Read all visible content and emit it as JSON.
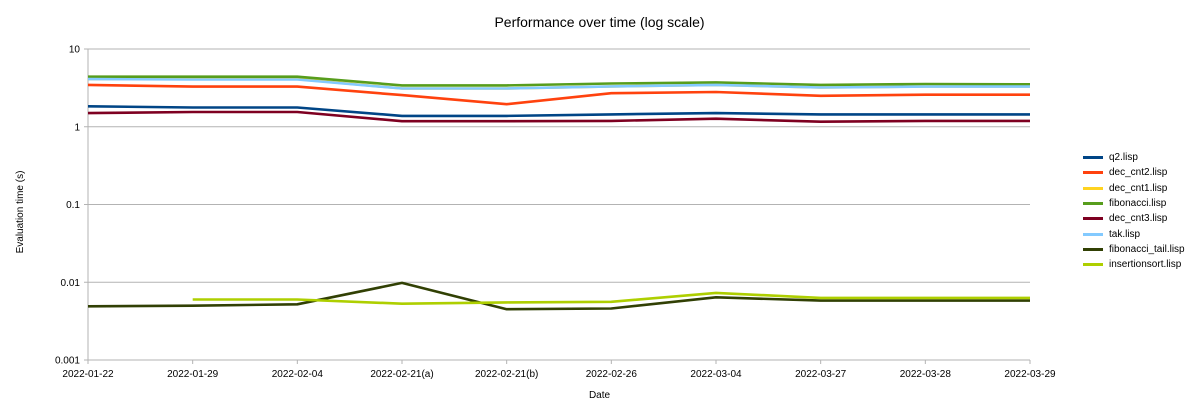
{
  "chart_data": {
    "type": "line",
    "title": "Performance over time  (log scale)",
    "xlabel": "Date",
    "ylabel": "Evaluation time (s)",
    "y_scale": "log",
    "ylim": [
      0.001,
      10
    ],
    "y_ticks": [
      "0.001",
      "0.01",
      "0.1",
      "1",
      "10"
    ],
    "grid": "horizontal",
    "legend_position": "right",
    "categories": [
      "2022-01-22",
      "2022-01-29",
      "2022-02-04",
      "2022-02-21(a)",
      "2022-02-21(b)",
      "2022-02-26",
      "2022-03-04",
      "2022-03-27",
      "2022-03-28",
      "2022-03-29"
    ],
    "series": [
      {
        "name": "q2.lisp",
        "color": "#004586",
        "values": [
          1.83,
          1.77,
          1.77,
          1.38,
          1.38,
          1.44,
          1.5,
          1.44,
          1.44,
          1.44
        ]
      },
      {
        "name": "dec_cnt2.lisp",
        "color": "#ff420e",
        "values": [
          3.45,
          3.28,
          3.28,
          2.55,
          1.95,
          2.7,
          2.8,
          2.5,
          2.58,
          2.58
        ]
      },
      {
        "name": "dec_cnt1.lisp",
        "color": "#ffd320",
        "values": [
          4.1,
          4.1,
          4.1,
          3.1,
          3.1,
          3.3,
          3.45,
          3.2,
          3.3,
          3.3
        ]
      },
      {
        "name": "fibonacci.lisp",
        "color": "#579d1c",
        "values": [
          4.4,
          4.4,
          4.4,
          3.4,
          3.4,
          3.6,
          3.72,
          3.45,
          3.55,
          3.52
        ]
      },
      {
        "name": "dec_cnt3.lisp",
        "color": "#7e0021",
        "values": [
          1.5,
          1.55,
          1.55,
          1.18,
          1.18,
          1.19,
          1.27,
          1.16,
          1.19,
          1.19
        ]
      },
      {
        "name": "tak.lisp",
        "color": "#83caff",
        "values": [
          4.1,
          4.05,
          4.05,
          3.1,
          3.1,
          3.3,
          3.45,
          3.2,
          3.28,
          3.28
        ]
      },
      {
        "name": "fibonacci_tail.lisp",
        "color": "#314004",
        "values": [
          0.0049,
          0.005,
          0.0052,
          0.0098,
          0.0045,
          0.0046,
          0.0064,
          0.0058,
          0.0058,
          0.0058
        ]
      },
      {
        "name": "insertionsort.lisp",
        "color": "#aecf00",
        "values": [
          null,
          0.006,
          0.006,
          0.0053,
          0.0055,
          0.0056,
          0.0073,
          0.0063,
          0.0063,
          0.0063
        ]
      }
    ]
  }
}
